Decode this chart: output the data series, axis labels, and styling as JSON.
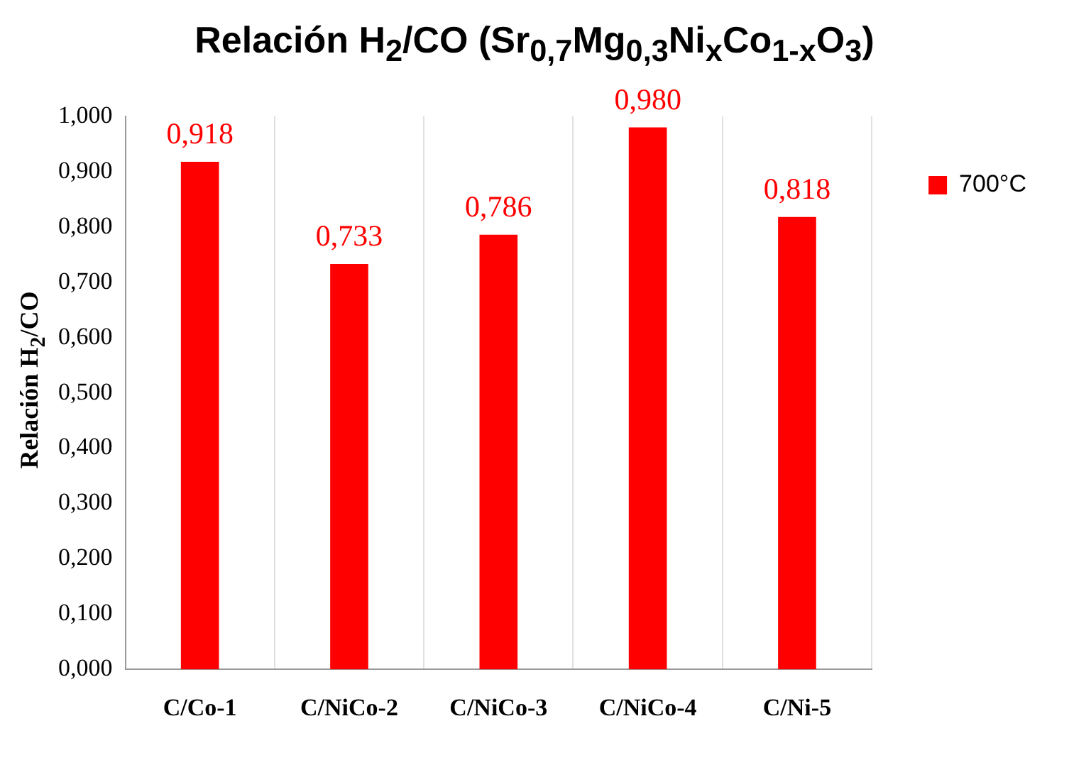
{
  "chart_data": {
    "type": "bar",
    "title": "Relación H$_{2}$/CO (Sr$_{0,7}$Mg$_{0,3}$Ni$_{x}$Co$_{1-x}$O$_{3}$)",
    "ylabel": "Relación H$_{2}$/CO",
    "categories": [
      "C/Co-1",
      "C/NiCo-2",
      "C/NiCo-3",
      "C/NiCo-4",
      "C/Ni-5"
    ],
    "series": [
      {
        "name": "700°C",
        "color": "#ff0000",
        "values": [
          0.918,
          0.733,
          0.786,
          0.98,
          0.818
        ],
        "value_labels": [
          "0,918",
          "0,733",
          "0,786",
          "0,980",
          "0,818"
        ]
      }
    ],
    "ylim": [
      0,
      1
    ],
    "yticks": [
      {
        "value": 0,
        "label": "0,000"
      },
      {
        "value": 0.1,
        "label": "0,100"
      },
      {
        "value": 0.2,
        "label": "0,200"
      },
      {
        "value": 0.3,
        "label": "0,300"
      },
      {
        "value": 0.4,
        "label": "0,400"
      },
      {
        "value": 0.5,
        "label": "0,500"
      },
      {
        "value": 0.6,
        "label": "0,600"
      },
      {
        "value": 0.7,
        "label": "0,700"
      },
      {
        "value": 0.8,
        "label": "0,800"
      },
      {
        "value": 0.9,
        "label": "0,900"
      },
      {
        "value": 1,
        "label": "1,000"
      }
    ],
    "grid": "x",
    "legend": "right"
  }
}
